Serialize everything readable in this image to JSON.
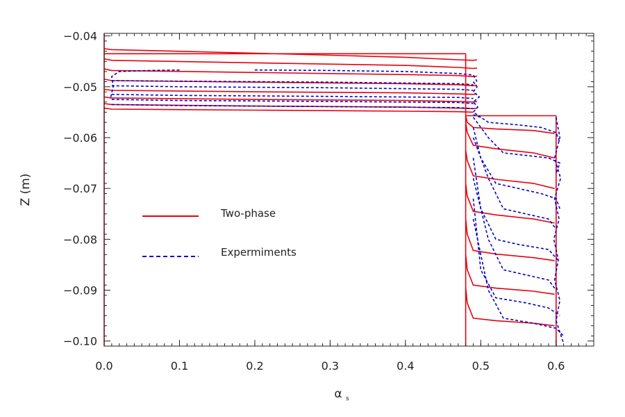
{
  "chart_data": {
    "type": "line",
    "xlabel": "α",
    "xlabel_subscript": "s",
    "ylabel": "Z (m)",
    "xlim": [
      0.0,
      0.65
    ],
    "ylim": [
      -0.101,
      -0.0395
    ],
    "x_ticks": [
      0.0,
      0.1,
      0.2,
      0.3,
      0.4,
      0.5,
      0.6
    ],
    "x_tick_labels": [
      "0.0",
      "0.1",
      "0.2",
      "0.3",
      "0.4",
      "0.5",
      "0.6"
    ],
    "y_ticks": [
      -0.04,
      -0.05,
      -0.06,
      -0.07,
      -0.08,
      -0.09,
      -0.1
    ],
    "y_tick_labels": [
      "−0.04",
      "−0.05",
      "−0.06",
      "−0.07",
      "−0.08",
      "−0.09",
      "−0.10"
    ],
    "grid": false,
    "legend_position": "left-middle",
    "colors": {
      "two_phase": "#e8000b",
      "experiments": "#0000cc"
    },
    "series": [
      {
        "name": "Two-phase",
        "style": "solid",
        "color": "#e8000b",
        "curves": [
          {
            "x": [
              0.0,
              0.0
            ],
            "y": [
              -0.0395,
              -0.101
            ]
          },
          {
            "x": [
              0.48,
              0.48
            ],
            "y": [
              -0.101,
              -0.0435
            ]
          },
          {
            "x": [
              0.0,
              0.48
            ],
            "y": [
              -0.0435,
              -0.0435
            ]
          },
          {
            "x": [
              0.48,
              0.6
            ],
            "y": [
              -0.0557,
              -0.0557
            ]
          },
          {
            "x": [
              0.6,
              0.6
            ],
            "y": [
              -0.0557,
              -0.101
            ]
          },
          {
            "x": [
              0.0,
              0.01,
              0.2,
              0.4,
              0.47,
              0.49,
              0.495
            ],
            "y": [
              -0.0425,
              -0.0427,
              -0.0434,
              -0.0442,
              -0.0447,
              -0.0448,
              -0.0447
            ]
          },
          {
            "x": [
              0.0,
              0.01,
              0.2,
              0.4,
              0.47,
              0.49,
              0.495
            ],
            "y": [
              -0.0445,
              -0.0448,
              -0.0453,
              -0.0458,
              -0.0462,
              -0.0464,
              -0.0463
            ]
          },
          {
            "x": [
              0.0,
              0.01,
              0.2,
              0.4,
              0.47,
              0.49,
              0.495
            ],
            "y": [
              -0.0465,
              -0.0468,
              -0.0472,
              -0.0476,
              -0.0478,
              -0.048,
              -0.0479
            ]
          },
          {
            "x": [
              0.0,
              0.01,
              0.2,
              0.4,
              0.47,
              0.49,
              0.495
            ],
            "y": [
              -0.0485,
              -0.0488,
              -0.0491,
              -0.0494,
              -0.0496,
              -0.0498,
              -0.0497
            ]
          },
          {
            "x": [
              0.0,
              0.01,
              0.2,
              0.4,
              0.47,
              0.49,
              0.495
            ],
            "y": [
              -0.0505,
              -0.0507,
              -0.051,
              -0.0512,
              -0.0514,
              -0.0515,
              -0.0514
            ]
          },
          {
            "x": [
              0.0,
              0.01,
              0.2,
              0.4,
              0.47,
              0.49,
              0.495
            ],
            "y": [
              -0.052,
              -0.0522,
              -0.0525,
              -0.0527,
              -0.0529,
              -0.053,
              -0.0529
            ]
          },
          {
            "x": [
              0.0,
              0.01,
              0.2,
              0.4,
              0.47,
              0.49,
              0.495
            ],
            "y": [
              -0.0533,
              -0.0535,
              -0.0538,
              -0.054,
              -0.0542,
              -0.0543,
              -0.0542
            ]
          },
          {
            "x": [
              0.0,
              0.01,
              0.2,
              0.4,
              0.47,
              0.49
            ],
            "y": [
              -0.0542,
              -0.0544,
              -0.0546,
              -0.0548,
              -0.0549,
              -0.055
            ]
          },
          {
            "x": [
              0.48,
              0.482,
              0.49,
              0.52,
              0.57,
              0.598
            ],
            "y": [
              -0.0557,
              -0.057,
              -0.058,
              -0.0583,
              -0.0586,
              -0.0592
            ]
          },
          {
            "x": [
              0.48,
              0.482,
              0.49,
              0.52,
              0.57,
              0.598
            ],
            "y": [
              -0.057,
              -0.059,
              -0.0615,
              -0.0622,
              -0.063,
              -0.064
            ]
          },
          {
            "x": [
              0.48,
              0.482,
              0.49,
              0.52,
              0.57,
              0.598
            ],
            "y": [
              -0.0625,
              -0.0645,
              -0.0675,
              -0.0682,
              -0.069,
              -0.07
            ]
          },
          {
            "x": [
              0.48,
              0.482,
              0.49,
              0.52,
              0.57,
              0.598
            ],
            "y": [
              -0.069,
              -0.0715,
              -0.0745,
              -0.0752,
              -0.076,
              -0.0768
            ]
          },
          {
            "x": [
              0.48,
              0.482,
              0.49,
              0.52,
              0.57,
              0.598
            ],
            "y": [
              -0.076,
              -0.079,
              -0.0822,
              -0.0829,
              -0.0836,
              -0.0842
            ]
          },
          {
            "x": [
              0.48,
              0.482,
              0.49,
              0.52,
              0.57,
              0.598
            ],
            "y": [
              -0.083,
              -0.086,
              -0.089,
              -0.0896,
              -0.0902,
              -0.0908
            ]
          },
          {
            "x": [
              0.48,
              0.482,
              0.49,
              0.52,
              0.57,
              0.598
            ],
            "y": [
              -0.0895,
              -0.0925,
              -0.0955,
              -0.096,
              -0.0965,
              -0.097
            ]
          }
        ]
      },
      {
        "name": "Expermiments",
        "style": "dashed",
        "color": "#0000cc",
        "curves": [
          {
            "x": [
              0.1,
              0.06,
              0.02,
              0.01,
              0.012,
              0.008
            ],
            "y": [
              -0.0467,
              -0.0468,
              -0.047,
              -0.048,
              -0.05,
              -0.0525
            ]
          },
          {
            "x": [
              0.2,
              0.3,
              0.4,
              0.47,
              0.49,
              0.495
            ],
            "y": [
              -0.0467,
              -0.0468,
              -0.047,
              -0.0474,
              -0.0477,
              -0.049
            ]
          },
          {
            "x": [
              0.01,
              0.1,
              0.3,
              0.47,
              0.49
            ],
            "y": [
              -0.0488,
              -0.0489,
              -0.0491,
              -0.0494,
              -0.0496
            ]
          },
          {
            "x": [
              0.01,
              0.1,
              0.3,
              0.47,
              0.49
            ],
            "y": [
              -0.0498,
              -0.05,
              -0.0502,
              -0.0505,
              -0.0507
            ]
          },
          {
            "x": [
              0.01,
              0.1,
              0.3,
              0.47,
              0.49
            ],
            "y": [
              -0.0515,
              -0.0517,
              -0.0519,
              -0.0521,
              -0.0523
            ]
          },
          {
            "x": [
              0.01,
              0.1,
              0.3,
              0.47,
              0.49
            ],
            "y": [
              -0.0525,
              -0.0527,
              -0.0529,
              -0.0531,
              -0.0533
            ]
          },
          {
            "x": [
              0.01,
              0.1,
              0.3,
              0.47,
              0.49
            ],
            "y": [
              -0.0535,
              -0.0537,
              -0.0539,
              -0.0541,
              -0.0543
            ]
          },
          {
            "x": [
              0.49,
              0.495,
              0.49,
              0.498,
              0.49,
              0.496,
              0.49,
              0.5
            ],
            "y": [
              -0.049,
              -0.05,
              -0.051,
              -0.052,
              -0.053,
              -0.054,
              -0.055,
              -0.056
            ]
          },
          {
            "x": [
              0.49,
              0.5,
              0.51,
              0.55,
              0.58,
              0.6,
              0.605
            ],
            "y": [
              -0.0555,
              -0.056,
              -0.057,
              -0.0575,
              -0.058,
              -0.059,
              -0.061
            ]
          },
          {
            "x": [
              0.49,
              0.51,
              0.53,
              0.56,
              0.59,
              0.605,
              0.6
            ],
            "y": [
              -0.056,
              -0.06,
              -0.063,
              -0.0635,
              -0.064,
              -0.065,
              -0.067
            ]
          },
          {
            "x": [
              0.49,
              0.5,
              0.52,
              0.55,
              0.58,
              0.6,
              0.605
            ],
            "y": [
              -0.058,
              -0.064,
              -0.069,
              -0.07,
              -0.071,
              -0.072,
              -0.074
            ]
          },
          {
            "x": [
              0.49,
              0.51,
              0.53,
              0.56,
              0.59,
              0.6
            ],
            "y": [
              -0.06,
              -0.068,
              -0.074,
              -0.075,
              -0.076,
              -0.078
            ]
          },
          {
            "x": [
              0.49,
              0.5,
              0.52,
              0.55,
              0.59,
              0.602
            ],
            "y": [
              -0.064,
              -0.074,
              -0.08,
              -0.081,
              -0.082,
              -0.084
            ]
          },
          {
            "x": [
              0.49,
              0.51,
              0.53,
              0.56,
              0.59,
              0.6
            ],
            "y": [
              -0.068,
              -0.08,
              -0.086,
              -0.087,
              -0.088,
              -0.09
            ]
          },
          {
            "x": [
              0.49,
              0.5,
              0.52,
              0.56,
              0.59,
              0.605
            ],
            "y": [
              -0.072,
              -0.086,
              -0.0915,
              -0.0925,
              -0.0935,
              -0.095
            ]
          },
          {
            "x": [
              0.49,
              0.51,
              0.53,
              0.57,
              0.6,
              0.61
            ],
            "y": [
              -0.076,
              -0.09,
              -0.0955,
              -0.0965,
              -0.0975,
              -0.099
            ]
          },
          {
            "x": [
              0.6,
              0.605,
              0.598,
              0.606,
              0.598,
              0.604,
              0.597,
              0.603,
              0.598,
              0.605,
              0.6,
              0.61
            ],
            "y": [
              -0.056,
              -0.06,
              -0.064,
              -0.068,
              -0.072,
              -0.076,
              -0.08,
              -0.084,
              -0.088,
              -0.092,
              -0.096,
              -0.1005
            ]
          }
        ]
      }
    ]
  }
}
